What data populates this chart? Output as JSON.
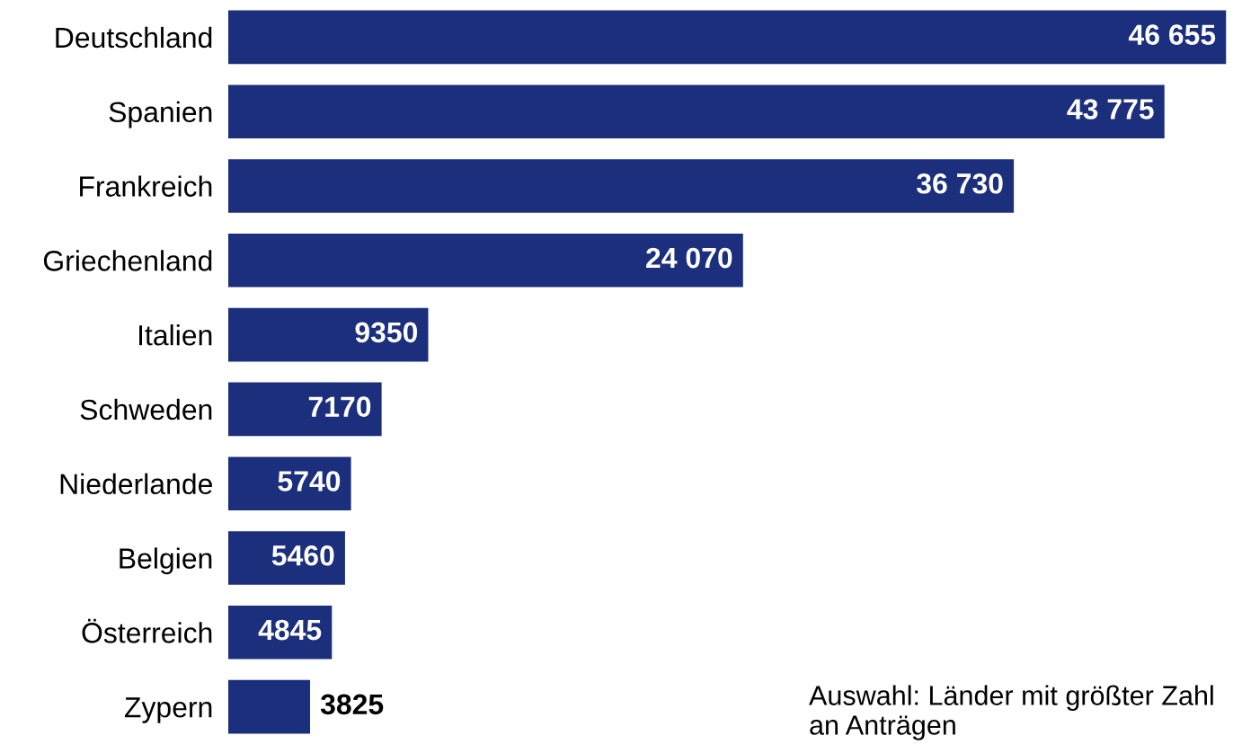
{
  "chart_data": {
    "type": "bar",
    "orientation": "horizontal",
    "categories": [
      "Deutschland",
      "Spanien",
      "Frankreich",
      "Griechenland",
      "Italien",
      "Schweden",
      "Niederlande",
      "Belgien",
      "Österreich",
      "Zypern"
    ],
    "values": [
      46655,
      43775,
      36730,
      24070,
      9350,
      7170,
      5740,
      5460,
      4845,
      3825
    ],
    "value_labels": [
      "46 655",
      "43 775",
      "36 730",
      "24 070",
      "9350",
      "7170",
      "5740",
      "5460",
      "4845",
      "3825"
    ],
    "color": "#1b2f7d",
    "grid": false,
    "legend": false,
    "annotations": [
      "Auswahl: Länder mit größter Zahl an Anträgen"
    ]
  }
}
